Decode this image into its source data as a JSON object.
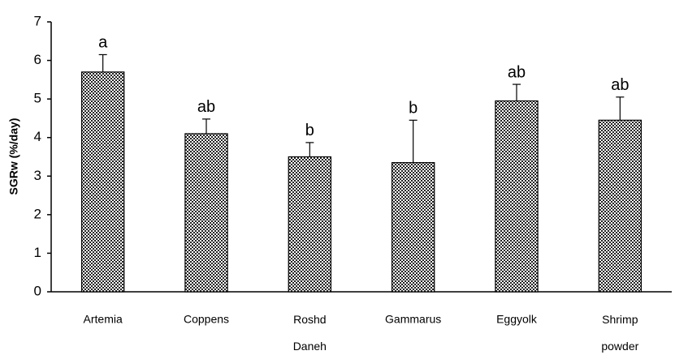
{
  "chart_data": {
    "type": "bar",
    "y_label": "SGRw (%/day)",
    "categories": [
      "Artemia",
      "Coppens",
      "Roshd Daneh",
      "Gammarus",
      "Eggyolk",
      "Shrimp powder"
    ],
    "values": [
      5.7,
      4.1,
      3.5,
      3.35,
      4.95,
      4.45
    ],
    "errors": [
      0.45,
      0.38,
      0.37,
      1.1,
      0.43,
      0.6
    ],
    "annotations": [
      "a",
      "ab",
      "b",
      "b",
      "ab",
      "ab"
    ],
    "ylim": [
      0,
      7
    ],
    "yticks": [
      0,
      1,
      2,
      3,
      4,
      5,
      6,
      7
    ],
    "grid": false
  }
}
